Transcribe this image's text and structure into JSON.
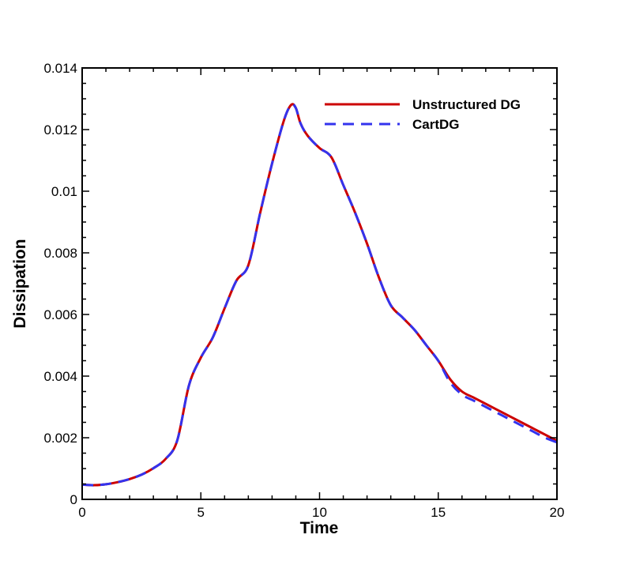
{
  "chart_data": {
    "type": "line",
    "xlabel": "Time",
    "ylabel": "Dissipation",
    "xlim": [
      0,
      20
    ],
    "ylim": [
      0,
      0.014
    ],
    "x_ticks": [
      {
        "value": 0,
        "label": "0"
      },
      {
        "value": 5,
        "label": "5"
      },
      {
        "value": 10,
        "label": "10"
      },
      {
        "value": 15,
        "label": "15"
      },
      {
        "value": 20,
        "label": "20"
      }
    ],
    "y_ticks": [
      {
        "value": 0,
        "label": "0"
      },
      {
        "value": 0.002,
        "label": "0.002"
      },
      {
        "value": 0.004,
        "label": "0.004"
      },
      {
        "value": 0.006,
        "label": "0.006"
      },
      {
        "value": 0.008,
        "label": "0.008"
      },
      {
        "value": 0.01,
        "label": "0.01"
      },
      {
        "value": 0.012,
        "label": "0.012"
      },
      {
        "value": 0.014,
        "label": "0.014"
      }
    ],
    "grid": false,
    "legend_position": "top-right",
    "series": [
      {
        "name": "Unstructured DG",
        "color": "#cc0000",
        "style": "solid",
        "x": [
          0,
          0.5,
          1,
          1.5,
          2,
          2.5,
          3,
          3.5,
          4,
          4.5,
          5,
          5.5,
          6,
          6.5,
          7,
          7.5,
          8,
          8.5,
          8.8,
          9,
          9.2,
          9.5,
          10,
          10.5,
          11,
          11.5,
          12,
          12.5,
          13,
          13.5,
          14,
          14.5,
          15,
          15.5,
          16,
          16.5,
          17,
          17.5,
          18,
          18.5,
          19,
          19.5,
          20
        ],
        "y": [
          0.00048,
          0.00046,
          0.00049,
          0.00056,
          0.00066,
          0.0008,
          0.00101,
          0.0013,
          0.0019,
          0.0037,
          0.0046,
          0.00525,
          0.0062,
          0.0071,
          0.0076,
          0.0093,
          0.0109,
          0.0123,
          0.0128,
          0.0127,
          0.0122,
          0.0118,
          0.0114,
          0.0111,
          0.0102,
          0.0093,
          0.0083,
          0.0072,
          0.0063,
          0.0059,
          0.0055,
          0.005,
          0.0045,
          0.0039,
          0.0035,
          0.0033,
          0.0031,
          0.0029,
          0.0027,
          0.0025,
          0.0023,
          0.0021,
          0.0019
        ]
      },
      {
        "name": "CartDG",
        "color": "#3333ee",
        "style": "dashed",
        "x": [
          0,
          0.5,
          1,
          1.5,
          2,
          2.5,
          3,
          3.5,
          4,
          4.5,
          5,
          5.5,
          6,
          6.5,
          7,
          7.5,
          8,
          8.5,
          8.8,
          9,
          9.2,
          9.5,
          10,
          10.5,
          11,
          11.5,
          12,
          12.5,
          13,
          13.5,
          14,
          14.5,
          15,
          15.5,
          16,
          16.5,
          17,
          17.5,
          18,
          18.5,
          19,
          19.5,
          20
        ],
        "y": [
          0.00048,
          0.00046,
          0.00049,
          0.00056,
          0.00066,
          0.0008,
          0.00101,
          0.0013,
          0.0019,
          0.0037,
          0.0046,
          0.00525,
          0.0062,
          0.0071,
          0.0076,
          0.0093,
          0.0109,
          0.0123,
          0.0128,
          0.0127,
          0.0122,
          0.0118,
          0.0114,
          0.0111,
          0.0102,
          0.0093,
          0.0083,
          0.0072,
          0.0063,
          0.0059,
          0.0055,
          0.005,
          0.0045,
          0.0038,
          0.0034,
          0.0032,
          0.003,
          0.0028,
          0.0026,
          0.0024,
          0.0022,
          0.002,
          0.00185
        ]
      }
    ]
  }
}
